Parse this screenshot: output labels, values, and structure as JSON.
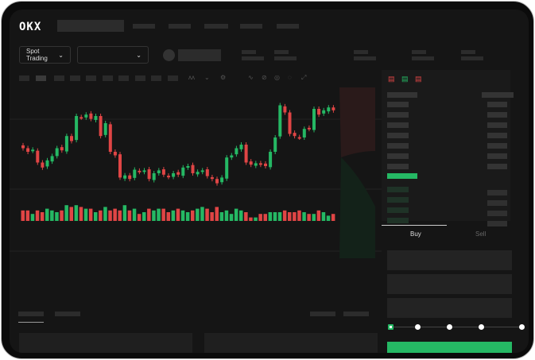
{
  "header": {
    "logo": "OKX"
  },
  "toolbar": {
    "market_type": "Spot Trading",
    "pair_select": ""
  },
  "order_form": {
    "tabs": [
      {
        "label": "Buy",
        "active": true
      },
      {
        "label": "Sell",
        "active": false
      }
    ],
    "slider_percent": 0
  },
  "colors": {
    "up": "#25b864",
    "down": "#e04545",
    "accent": "#25b864",
    "background": "#151515"
  },
  "chart_data": {
    "type": "candlestick",
    "closes": [
      95,
      90,
      93,
      75,
      68,
      78,
      84,
      95,
      92,
      112,
      105,
      140,
      138,
      142,
      136,
      140,
      112,
      130,
      90,
      85,
      54,
      57,
      52,
      65,
      62,
      64,
      52,
      60,
      64,
      58,
      55,
      60,
      58,
      68,
      70,
      60,
      62,
      64,
      56,
      52,
      46,
      54,
      82,
      85,
      95,
      100,
      75,
      72,
      74,
      72,
      70,
      90,
      110,
      155,
      145,
      115,
      112,
      110,
      122,
      122,
      150,
      142,
      148,
      152,
      148
    ],
    "volumes": [
      6,
      6,
      4,
      6,
      5,
      7,
      6,
      5,
      6,
      9,
      8,
      9,
      8,
      7,
      7,
      5,
      6,
      8,
      6,
      7,
      6,
      9,
      6,
      7,
      4,
      5,
      7,
      6,
      7,
      7,
      5,
      6,
      7,
      6,
      5,
      6,
      7,
      8,
      7,
      5,
      8,
      5,
      6,
      4,
      7,
      6,
      5,
      2,
      2,
      4,
      4,
      5,
      5,
      5,
      6,
      5,
      5,
      6,
      5,
      4,
      4,
      6,
      5,
      3,
      4
    ]
  }
}
